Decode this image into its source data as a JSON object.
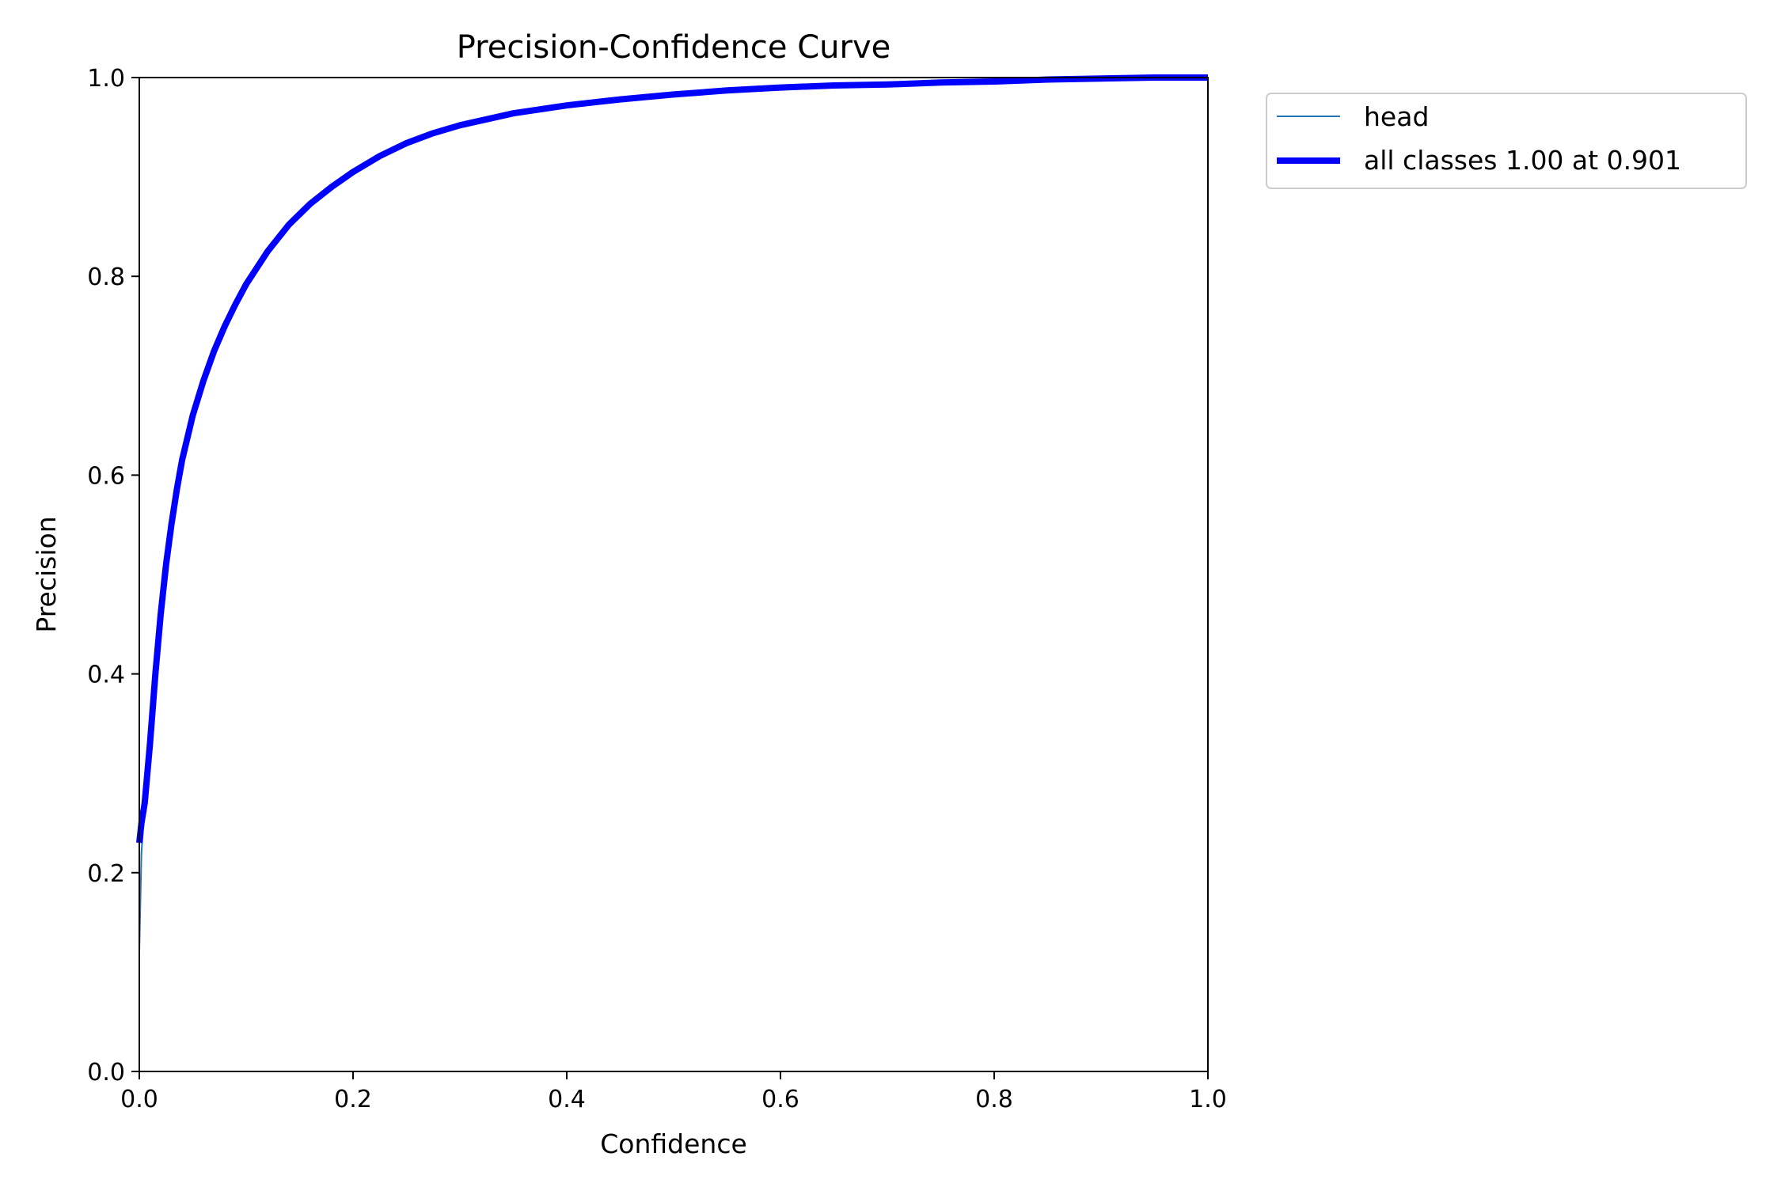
{
  "chart_data": {
    "type": "line",
    "title": "Precision-Confidence Curve",
    "xlabel": "Confidence",
    "ylabel": "Precision",
    "xlim": [
      0.0,
      1.0
    ],
    "ylim": [
      0.0,
      1.0
    ],
    "xticks": [
      "0.0",
      "0.2",
      "0.4",
      "0.6",
      "0.8",
      "1.0"
    ],
    "yticks": [
      "0.0",
      "0.2",
      "0.4",
      "0.6",
      "0.8",
      "1.0"
    ],
    "grid": false,
    "legend_position": "outside-top-right",
    "series": [
      {
        "name": "head",
        "color": "#1f77b4",
        "x": [
          0.0,
          0.002,
          0.005,
          0.01,
          0.015,
          0.02,
          0.025,
          0.03,
          0.035,
          0.04,
          0.05,
          0.06,
          0.07,
          0.08,
          0.09,
          0.1,
          0.12,
          0.14,
          0.16,
          0.18,
          0.2,
          0.225,
          0.25,
          0.275,
          0.3,
          0.35,
          0.4,
          0.45,
          0.5,
          0.55,
          0.6,
          0.65,
          0.7,
          0.75,
          0.8,
          0.85,
          0.9,
          0.95,
          1.0
        ],
        "y": [
          0.12,
          0.22,
          0.27,
          0.33,
          0.4,
          0.46,
          0.51,
          0.55,
          0.585,
          0.615,
          0.66,
          0.695,
          0.725,
          0.75,
          0.772,
          0.792,
          0.825,
          0.852,
          0.873,
          0.89,
          0.905,
          0.921,
          0.934,
          0.944,
          0.952,
          0.964,
          0.972,
          0.978,
          0.983,
          0.987,
          0.99,
          0.992,
          0.993,
          0.995,
          0.996,
          0.998,
          0.999,
          1.0,
          1.0
        ]
      },
      {
        "name": "all classes 1.00 at 0.901",
        "color": "#0000ff",
        "x": [
          0.0,
          0.002,
          0.005,
          0.01,
          0.015,
          0.02,
          0.025,
          0.03,
          0.035,
          0.04,
          0.05,
          0.06,
          0.07,
          0.08,
          0.09,
          0.1,
          0.12,
          0.14,
          0.16,
          0.18,
          0.2,
          0.225,
          0.25,
          0.275,
          0.3,
          0.35,
          0.4,
          0.45,
          0.5,
          0.55,
          0.6,
          0.65,
          0.7,
          0.75,
          0.8,
          0.85,
          0.9,
          0.95,
          1.0
        ],
        "y": [
          0.23,
          0.25,
          0.27,
          0.33,
          0.4,
          0.46,
          0.51,
          0.55,
          0.585,
          0.615,
          0.66,
          0.695,
          0.725,
          0.75,
          0.772,
          0.792,
          0.825,
          0.852,
          0.873,
          0.89,
          0.905,
          0.921,
          0.934,
          0.944,
          0.952,
          0.964,
          0.972,
          0.978,
          0.983,
          0.987,
          0.99,
          0.992,
          0.993,
          0.995,
          0.996,
          0.998,
          0.999,
          1.0,
          1.0
        ]
      }
    ]
  }
}
